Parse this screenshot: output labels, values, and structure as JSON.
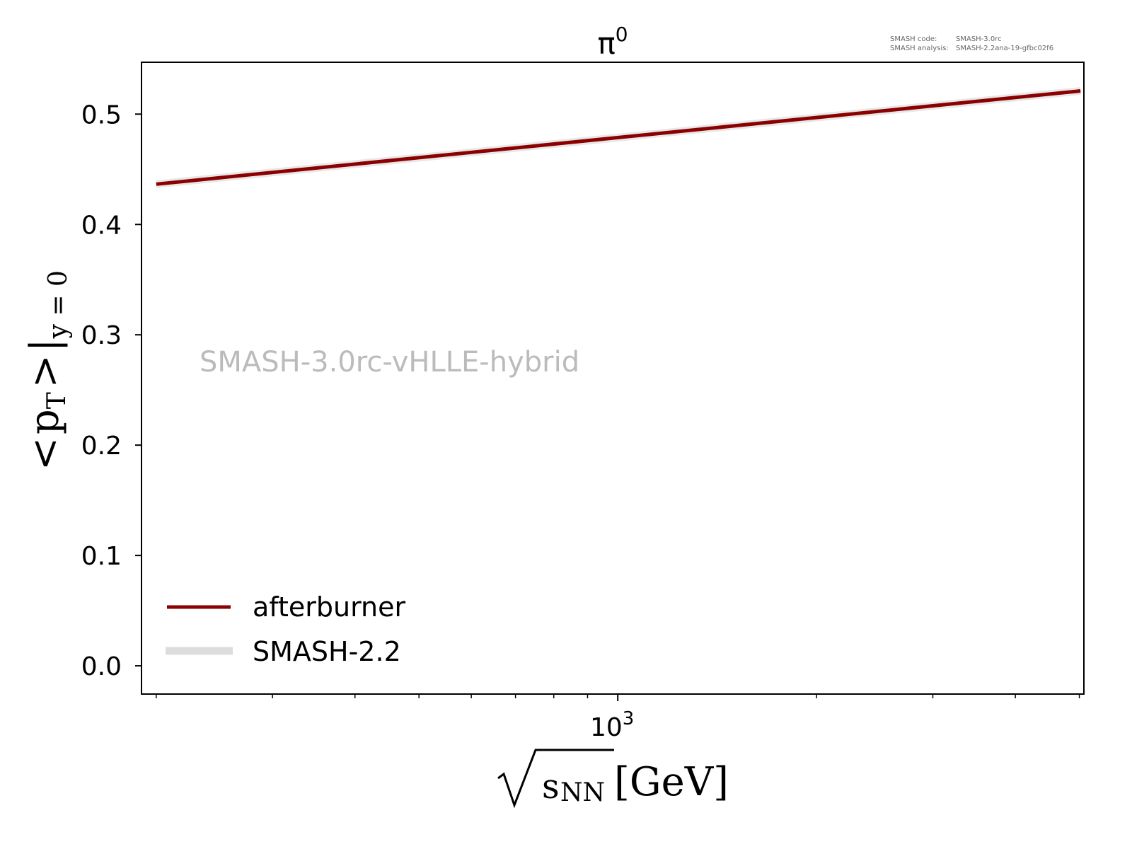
{
  "chart_data": {
    "type": "line",
    "title": "π",
    "title_superscript": "0",
    "xlabel": "√sNN [GeV]",
    "xlabel_parts": {
      "sub": "NN",
      "base": "s",
      "unit": "[GeV]"
    },
    "ylabel": "<pT>|y=0",
    "ylabel_parts": {
      "lt": "<",
      "p": "p",
      "sub_T": "T",
      "gt": ">",
      "bar": "|",
      "sub_y": "y = 0"
    },
    "xscale": "log",
    "xlim": [
      190,
      5080
    ],
    "ylim": [
      -0.0256,
      0.547
    ],
    "xticks_major": [
      {
        "value": 1000,
        "label": "10",
        "exp": "3"
      }
    ],
    "xticks_minor": [
      200,
      300,
      400,
      500,
      600,
      700,
      800,
      900,
      2000,
      3000,
      4000,
      5000
    ],
    "yticks": [
      {
        "value": 0.0,
        "label": "0.0"
      },
      {
        "value": 0.1,
        "label": "0.1"
      },
      {
        "value": 0.2,
        "label": "0.2"
      },
      {
        "value": 0.3,
        "label": "0.3"
      },
      {
        "value": 0.4,
        "label": "0.4"
      },
      {
        "value": 0.5,
        "label": "0.5"
      }
    ],
    "series": [
      {
        "name": "afterburner",
        "color": "#8b0000",
        "x": [
          200,
          5020
        ],
        "y": [
          0.4365,
          0.521
        ]
      },
      {
        "name": "SMASH-2.2",
        "color": "#dddddd",
        "x": [
          200,
          5020
        ],
        "y": [
          0.4365,
          0.521
        ]
      }
    ],
    "legend": {
      "position": "bottom-left",
      "entries": [
        "afterburner",
        "SMASH-2.2"
      ]
    },
    "annotation": "SMASH-3.0rc-vHLLE-hybrid",
    "version_info": {
      "code_label": "SMASH code:",
      "code_value": "SMASH-3.0rc",
      "analysis_label": "SMASH analysis:",
      "analysis_value": "SMASH-2.2ana-19-gfbc02f6"
    }
  }
}
